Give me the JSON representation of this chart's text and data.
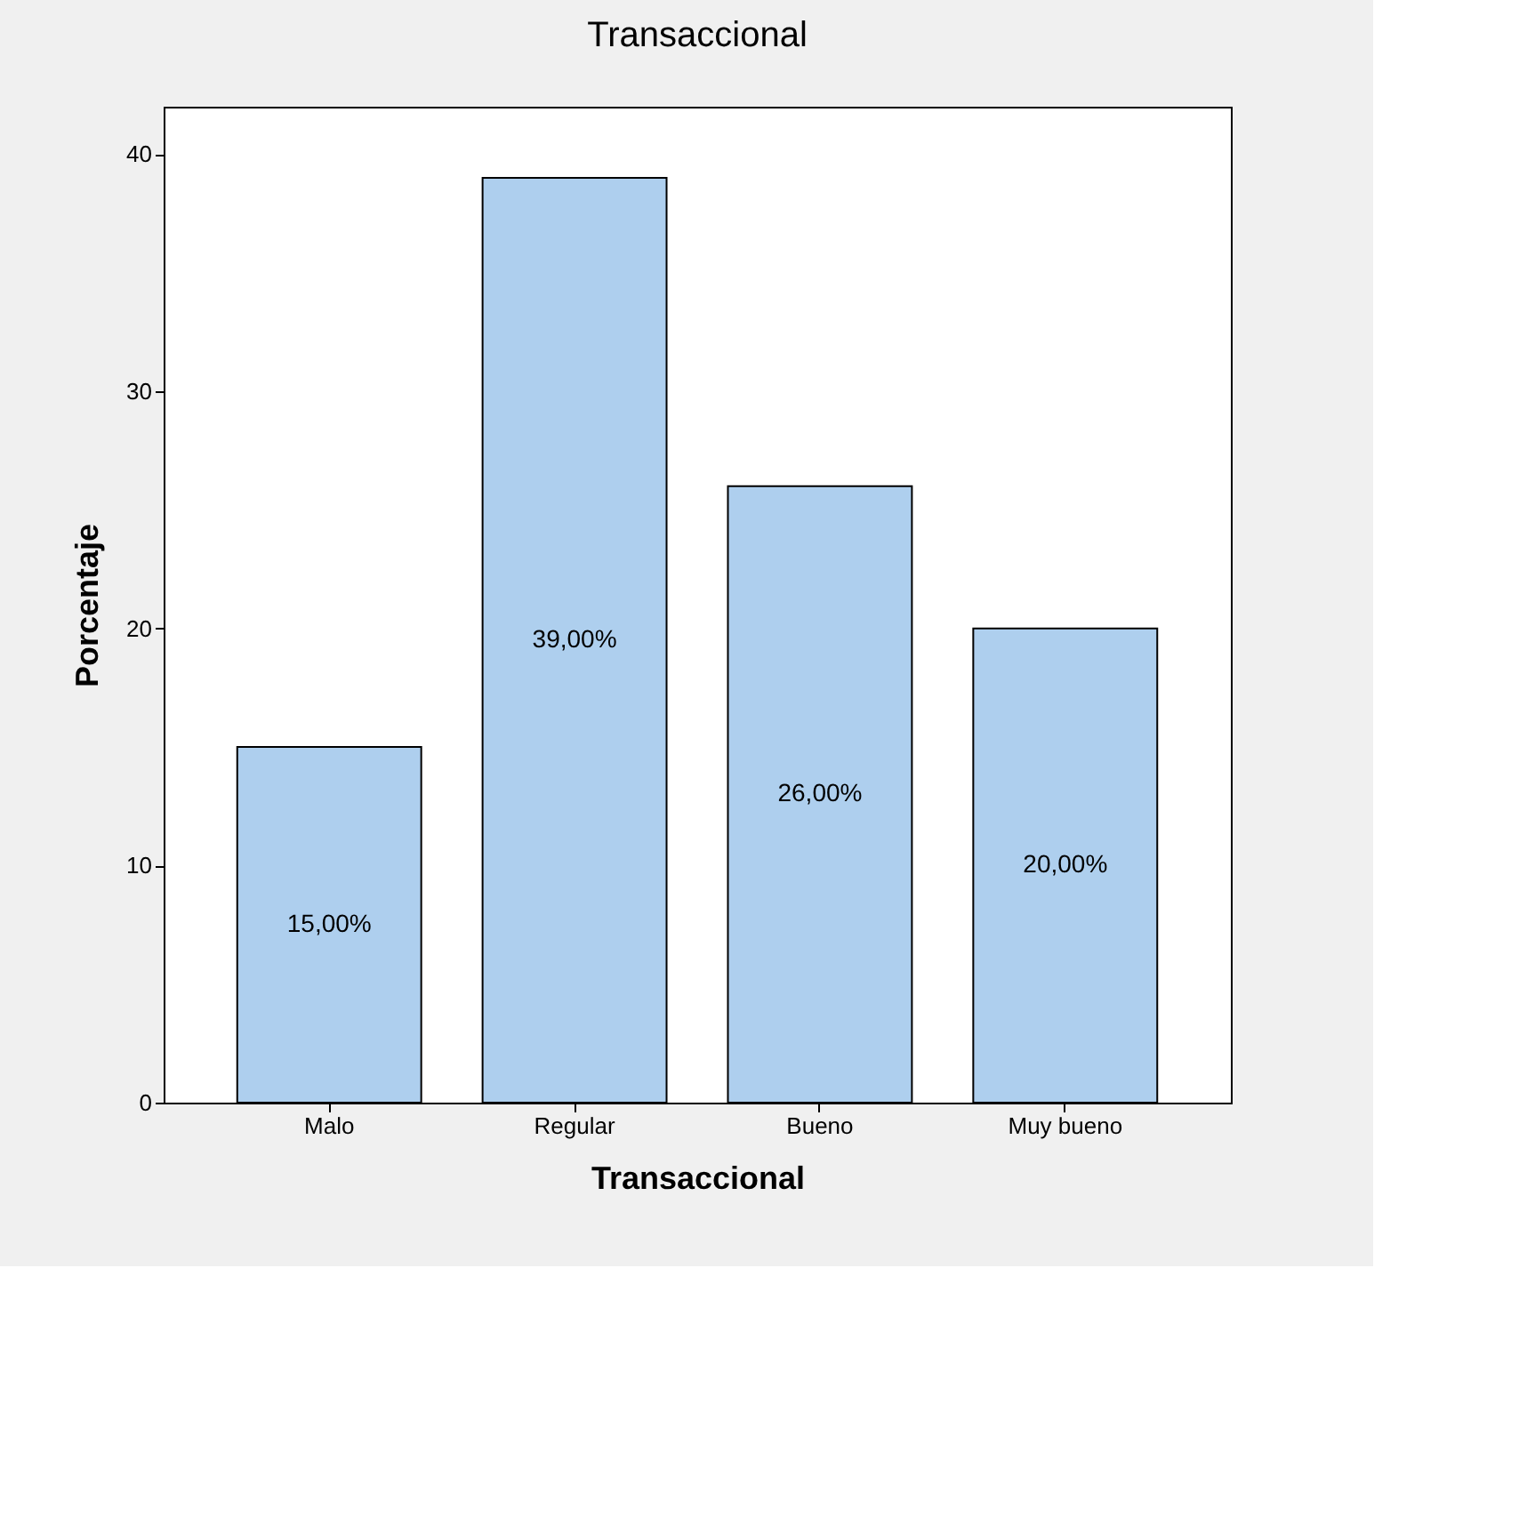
{
  "chart_data": {
    "type": "bar",
    "title": "Transaccional",
    "xlabel": "Transaccional",
    "ylabel": "Porcentaje",
    "categories": [
      "Malo",
      "Regular",
      "Bueno",
      "Muy bueno"
    ],
    "values": [
      15,
      39,
      26,
      20
    ],
    "value_labels": [
      "15,00%",
      "39,00%",
      "26,00%",
      "20,00%"
    ],
    "color": "#aecfee",
    "ylim": [
      0,
      42
    ],
    "yticks": [
      0,
      10,
      20,
      30,
      40
    ],
    "grid": false
  }
}
